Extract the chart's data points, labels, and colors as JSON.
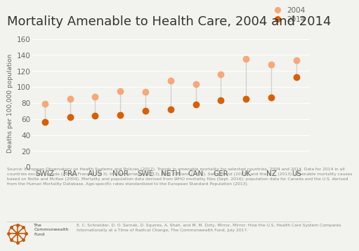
{
  "title": "Mortality Amenable to Health Care, 2004 and 2014",
  "ylabel": "Deaths per 100,000 population",
  "countries": [
    "SWIZ",
    "FRA",
    "AUS",
    "NOR",
    "SWE",
    "NETH",
    "CAN",
    "GER",
    "UK",
    "NZ",
    "US"
  ],
  "values_2004": [
    79,
    85,
    88,
    95,
    94,
    108,
    104,
    116,
    135,
    128,
    133
  ],
  "values_2014": [
    56,
    62,
    64,
    65,
    70,
    72,
    78,
    83,
    85,
    87,
    112
  ],
  "color_2004": "#f5a87a",
  "color_2014": "#d95f02",
  "line_color": "#d0cfc9",
  "ylim": [
    0,
    160
  ],
  "yticks": [
    0,
    20,
    40,
    60,
    80,
    100,
    120,
    140,
    160
  ],
  "bg_color": "#f2f2ee",
  "plot_bg": "#f2f2ee",
  "title_fontsize": 13,
  "label_fontsize": 6.5,
  "tick_fontsize": 7.5,
  "source_text": "Source: European Observatory on Health Systems and Policies (2017). Trends in amenable mortality for selected countries, 2004 and 2014. Data for 2014 in all\ncountries except Canada (2011), France (2013), the Netherlands (2013), New Zealand (2012), Switzerland (2013), and the U.K. (2013). Amenable mortality causes\nbased on Nolte and McKee (2004). Mortality and population data derived from WHO mortality files (Sept. 2016); population data for Canada and the U.S. derived\nfrom the Human Mortality Database. Age-specific rates standardized to the European Standard Population (2013).",
  "citation_text": "E. C. Schneider, D. O. Sarnak, D. Squires, A. Shah, and M. M. Doty, Mirror, Mirror: How the U.S. Health Care System Compares\nInternationally at a Time of Radical Change, The Commonwealth Fund, July 2017.",
  "logo_text": "The\nCommonwealth\nFund"
}
